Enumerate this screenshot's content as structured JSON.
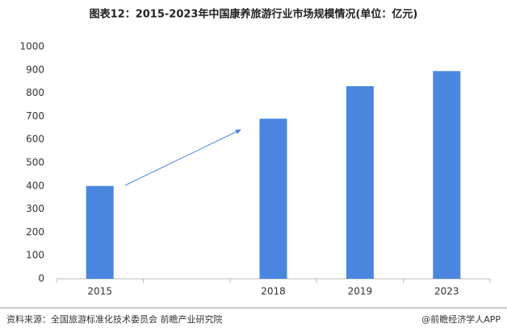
{
  "chart_data": {
    "type": "bar",
    "title": "图表12：2015-2023年中国康养旅游行业市场规模情况(单位：亿元)",
    "categories": [
      "2015",
      null,
      "2018",
      "2019",
      "2023"
    ],
    "values": [
      400,
      null,
      690,
      830,
      895
    ],
    "color": "#4a86e0",
    "ylim": [
      0,
      1000
    ],
    "yticks": [
      0,
      100,
      200,
      300,
      400,
      500,
      600,
      700,
      800,
      900,
      1000
    ],
    "source": "资料来源：全国旅游标准化技术委员会 前瞻产业研究院",
    "footer": "@前瞻经济学人APP"
  }
}
